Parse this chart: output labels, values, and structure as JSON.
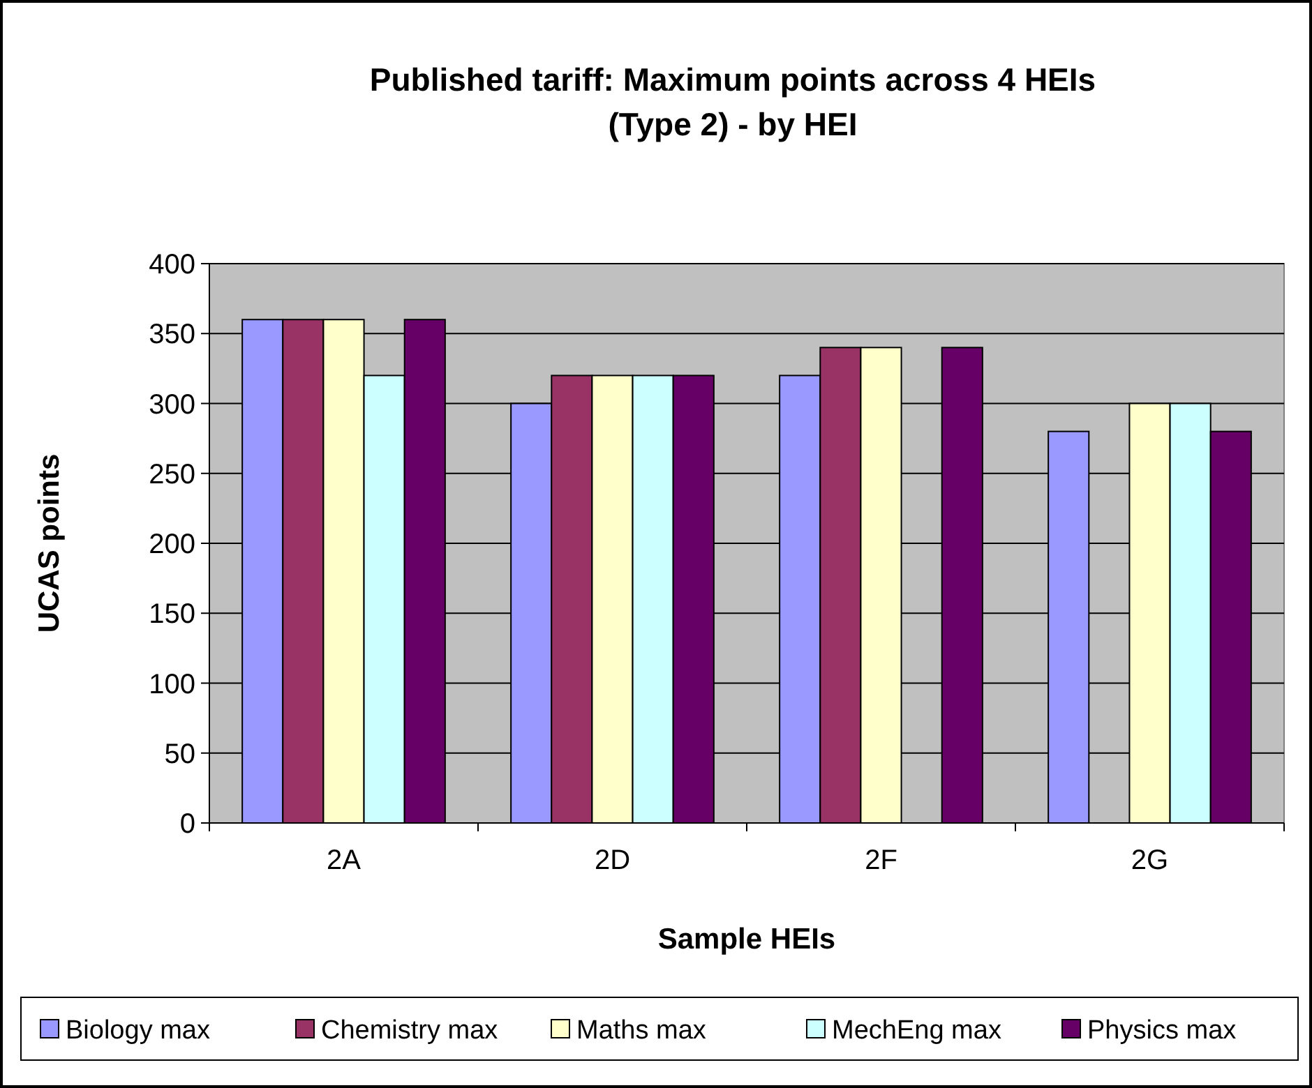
{
  "chart_data": {
    "type": "bar",
    "title": "Published tariff:  Maximum points across 4 HEIs\n(Type 2) -  by HEI",
    "xlabel": "Sample HEIs",
    "ylabel": "UCAS points",
    "categories": [
      "2A",
      "2D",
      "2F",
      "2G"
    ],
    "series": [
      {
        "name": "Biology max",
        "color": "#9999ff",
        "values": [
          360,
          300,
          320,
          280
        ]
      },
      {
        "name": "Chemistry max",
        "color": "#993366",
        "values": [
          360,
          320,
          340,
          null
        ]
      },
      {
        "name": "Maths max",
        "color": "#ffffcc",
        "values": [
          360,
          320,
          340,
          300
        ]
      },
      {
        "name": "MechEng max",
        "color": "#ccffff",
        "values": [
          320,
          320,
          null,
          300
        ]
      },
      {
        "name": "Physics max",
        "color": "#660066",
        "values": [
          360,
          320,
          340,
          280
        ]
      }
    ],
    "ylim": [
      0,
      400
    ],
    "yticks": [
      0,
      50,
      100,
      150,
      200,
      250,
      300,
      350,
      400
    ],
    "grid": "y",
    "legend": "bottom"
  }
}
